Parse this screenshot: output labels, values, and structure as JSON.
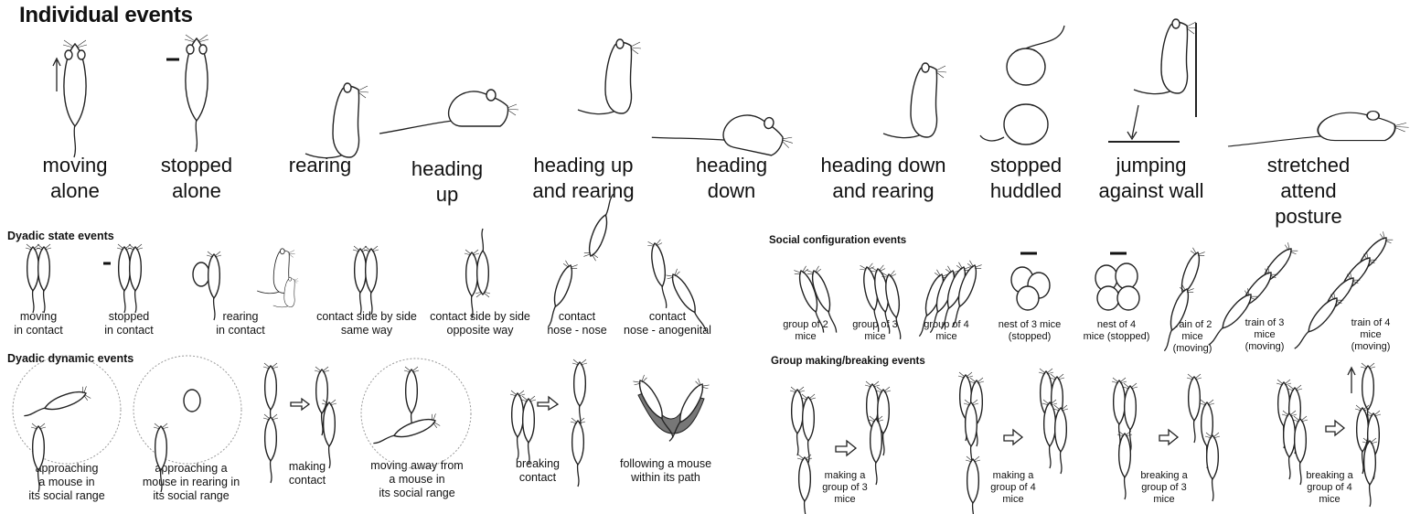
{
  "sections": {
    "individual": "Individual events",
    "dyadic_state": "Dyadic state events",
    "dyadic_dynamic": "Dyadic dynamic events",
    "social_config": "Social configuration events",
    "group_making": "Group making/breaking events"
  },
  "individual_events": [
    "moving\nalone",
    "stopped\nalone",
    "rearing",
    "heading\nup",
    "heading up\nand rearing",
    "heading\ndown",
    "heading down\nand rearing",
    "stopped\nhuddled",
    "jumping\nagainst wall",
    "stretched attend\nposture"
  ],
  "dyadic_state_events": [
    "moving\nin contact",
    "stopped\nin contact",
    "rearing\nin contact",
    "contact side by side\nsame way",
    "contact side by side\nopposite way",
    "contact\nnose - nose",
    "contact\nnose - anogenital"
  ],
  "dyadic_dynamic_events": [
    "approaching\na mouse in\nits social range",
    "approaching a\nmouse in rearing in\nits social range",
    "making\ncontact",
    "moving away from\na mouse in\nits social range",
    "breaking\ncontact",
    "following a mouse\nwithin its path"
  ],
  "social_configuration_events": [
    "group of 2\nmice",
    "group of 3\nmice",
    "group of 4\nmice",
    "nest of 3 mice\n(stopped)",
    "nest of 4\nmice (stopped)",
    "train of 2\nmice\n(moving)",
    "train of 3\nmice\n(moving)",
    "train of 4\nmice\n(moving)"
  ],
  "group_making_breaking_events": [
    "making a\ngroup of 3\nmice",
    "making a\ngroup of 4\nmice",
    "breaking a\ngroup of 3\nmice",
    "breaking a\ngroup of 4\nmice"
  ]
}
